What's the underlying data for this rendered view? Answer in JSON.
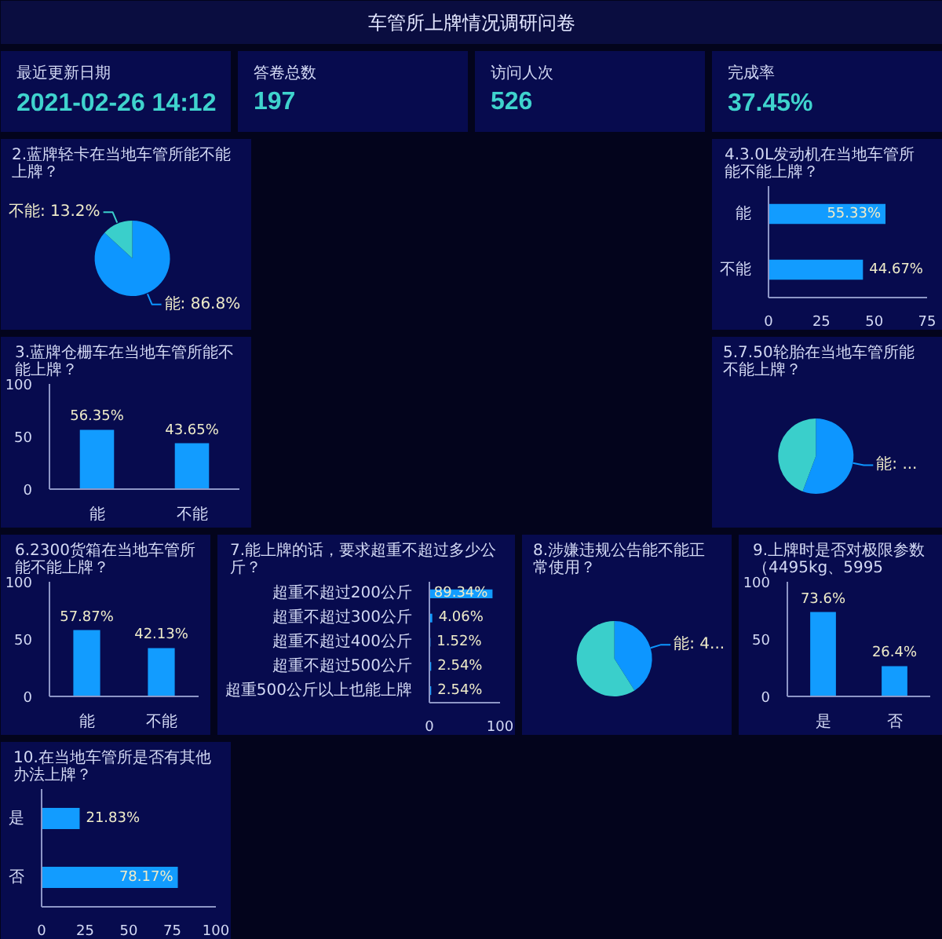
{
  "chart_data": [
    {
      "type": "other",
      "title": "车管所上牌情况调研问卷"
    },
    {
      "type": "other",
      "title": "最近更新日期",
      "annotations": [
        "2021-02-26 14:12"
      ]
    },
    {
      "type": "other",
      "title": "答卷总数",
      "annotations": [
        "197"
      ]
    },
    {
      "type": "other",
      "title": "访问人次",
      "annotations": [
        "526"
      ]
    },
    {
      "type": "other",
      "title": "完成率",
      "annotations": [
        "37.45%"
      ]
    },
    {
      "type": "pie",
      "title": "2.蓝牌轻卡在当地车管所能不能上牌？",
      "categories": [
        "能",
        "不能"
      ],
      "values": [
        86.8,
        13.2
      ],
      "colors": [
        "#0d96ff",
        "#3acfcb"
      ],
      "value_labels": [
        "86.8%",
        "13.2%"
      ]
    },
    {
      "type": "bar",
      "orientation": "horizontal",
      "title": "4.3.0L发动机在当地车管所能不能上牌？",
      "categories": [
        "能",
        "不能"
      ],
      "values": [
        55.33,
        44.67
      ],
      "color": "#129cff",
      "xlim": [
        0,
        75
      ],
      "xticks": [
        0,
        25,
        50,
        75
      ],
      "value_labels": [
        "55.33%",
        "44.67%"
      ]
    },
    {
      "type": "bar",
      "title": "3.蓝牌仓栅车在当地车管所能不能上牌？",
      "categories": [
        "能",
        "不能"
      ],
      "values": [
        56.35,
        43.65
      ],
      "color": "#129cff",
      "ylim": [
        0,
        100
      ],
      "yticks": [
        0,
        50,
        100
      ],
      "value_labels": [
        "56.35%",
        "43.65%"
      ]
    },
    {
      "type": "pie",
      "title": "5.7.50轮胎在当地车管所能不能上牌？",
      "categories": [
        "能",
        null
      ],
      "values": [
        55.7,
        44.3
      ],
      "colors": [
        "#0d96ff",
        "#3acfcb"
      ],
      "value_labels": [
        "...",
        null
      ]
    },
    {
      "type": "bar",
      "title": "6.2300货箱在当地车管所能不能上牌？",
      "categories": [
        "能",
        "不能"
      ],
      "values": [
        57.87,
        42.13
      ],
      "color": "#129cff",
      "ylim": [
        0,
        100
      ],
      "yticks": [
        0,
        50,
        100
      ],
      "value_labels": [
        "57.87%",
        "42.13%"
      ]
    },
    {
      "type": "bar",
      "orientation": "horizontal",
      "title": "7.能上牌的话，要求超重不超过多少公斤？",
      "categories": [
        "超重不超过200公斤",
        "超重不超过300公斤",
        "超重不超过400公斤",
        "超重不超过500公斤",
        "超重500公斤以上也能上牌"
      ],
      "values": [
        89.34,
        4.06,
        1.52,
        2.54,
        2.54
      ],
      "color": "#129cff",
      "xlim": [
        0,
        100
      ],
      "xticks": [
        0,
        100
      ],
      "value_labels": [
        "89.34%",
        "4.06%",
        "1.52%",
        "2.54%",
        "2.54%"
      ]
    },
    {
      "type": "pie",
      "title": "8.涉嫌违规公告能不能正常使用？",
      "categories": [
        "能",
        null
      ],
      "values": [
        41,
        59
      ],
      "colors": [
        "#0d96ff",
        "#3acfcb"
      ],
      "value_labels": [
        "4...",
        null
      ]
    },
    {
      "type": "bar",
      "title": "9.上牌时是否对极限参数（4495kg、5995",
      "categories": [
        "是",
        "否"
      ],
      "values": [
        73.6,
        26.4
      ],
      "color": "#129cff",
      "ylim": [
        0,
        100
      ],
      "yticks": [
        0,
        50,
        100
      ],
      "value_labels": [
        "73.6%",
        "26.4%"
      ]
    },
    {
      "type": "bar",
      "orientation": "horizontal",
      "title": "10.在当地车管所是否有其他办法上牌？",
      "categories": [
        "是",
        "否"
      ],
      "values": [
        21.83,
        78.17
      ],
      "color": "#129cff",
      "xlim": [
        0,
        100
      ],
      "xticks": [
        0,
        25,
        50,
        75,
        100
      ],
      "value_labels": [
        "21.83%",
        "78.17%"
      ]
    }
  ]
}
